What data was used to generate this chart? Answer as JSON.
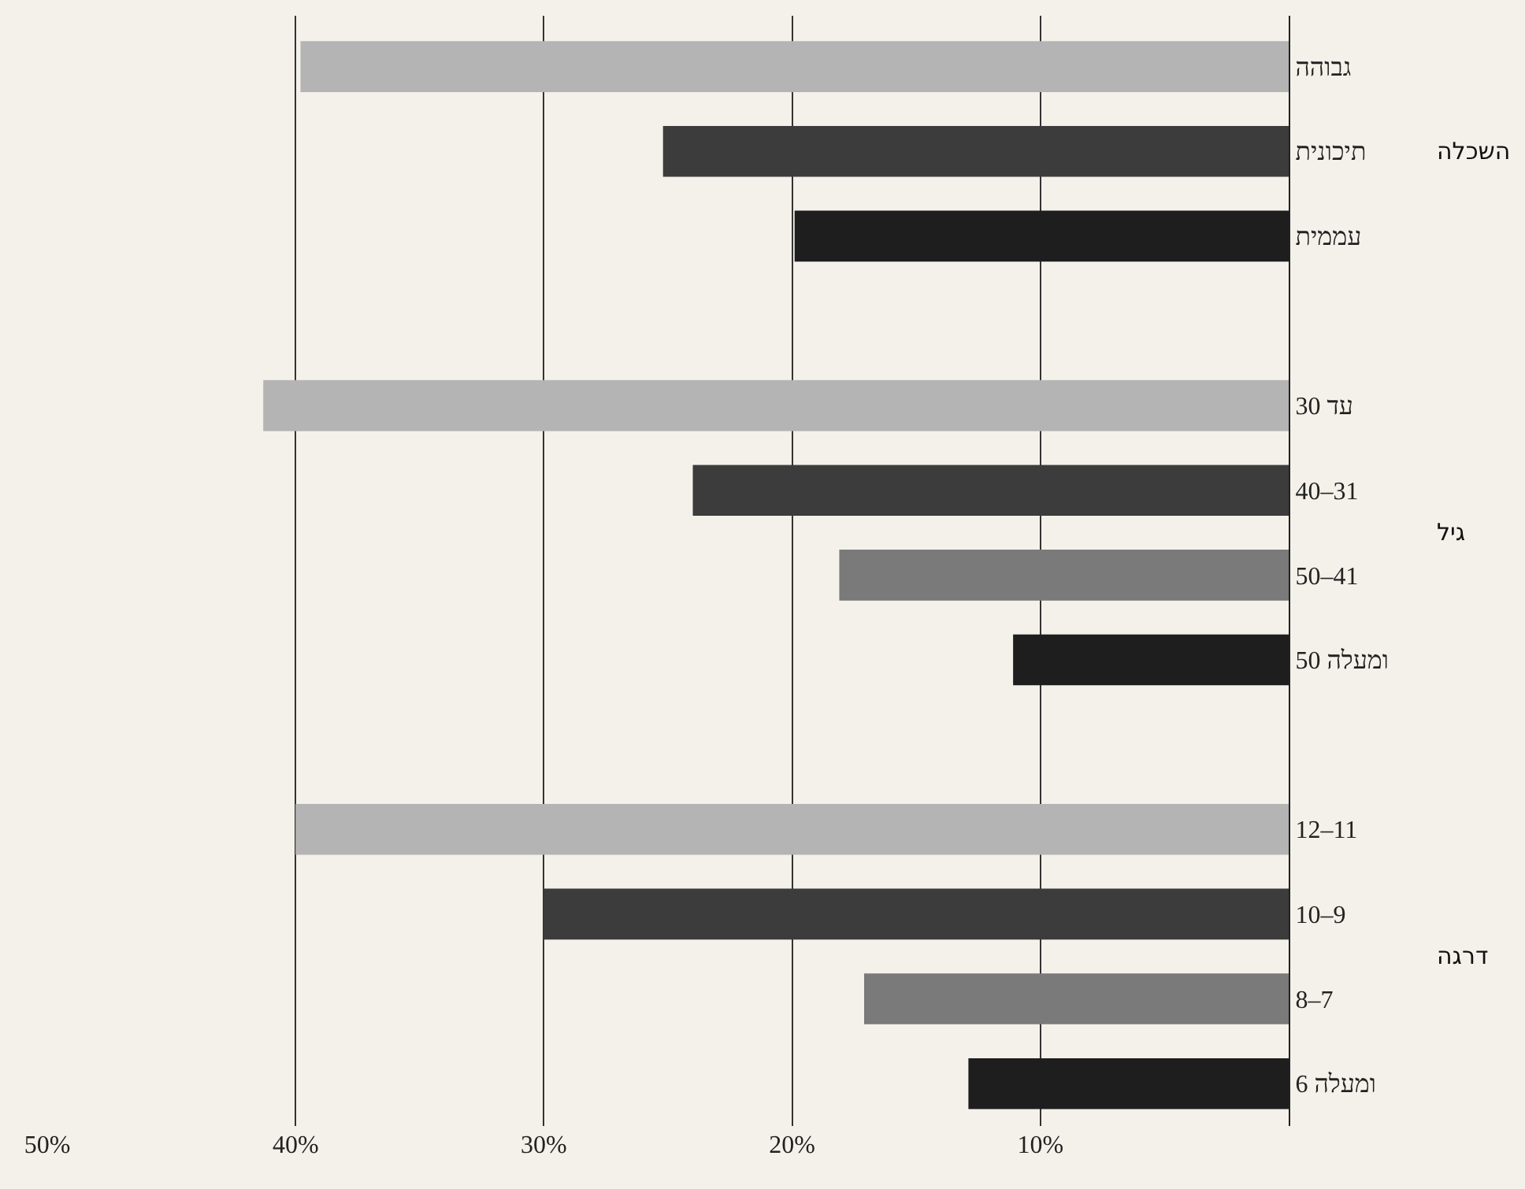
{
  "chart_data": {
    "type": "bar",
    "orientation": "horizontal",
    "categories": [
      "גבוהה",
      "תיכונית",
      "עממית",
      null,
      "עד 30",
      "40–31",
      "50–41",
      "50 ומעלה",
      null,
      "12–11",
      "10–9",
      "8–7",
      "6 ומעלה"
    ],
    "values": [
      39.8,
      25.2,
      19.9,
      null,
      41.3,
      24.0,
      18.1,
      11.1,
      null,
      40.0,
      30.0,
      17.1,
      12.9
    ],
    "colors": [
      "#b4b4b4",
      "#3c3c3c",
      "#1e1e1e",
      null,
      "#b4b4b4",
      "#3c3c3c",
      "#7a7a7a",
      "#1e1e1e",
      null,
      "#b4b4b4",
      "#3c3c3c",
      "#7a7a7a",
      "#1e1e1e"
    ],
    "xlim": [
      50,
      0
    ],
    "xticks": [
      {
        "value": 50,
        "label": "50%"
      },
      {
        "value": 40,
        "label": "40%"
      },
      {
        "value": 30,
        "label": "30%"
      },
      {
        "value": 20,
        "label": "20%"
      },
      {
        "value": 10,
        "label": "10%"
      },
      {
        "value": 0,
        "label": null
      }
    ],
    "grid": "x",
    "annotations": [
      "השכלה",
      "גיל",
      "דרגה"
    ]
  }
}
